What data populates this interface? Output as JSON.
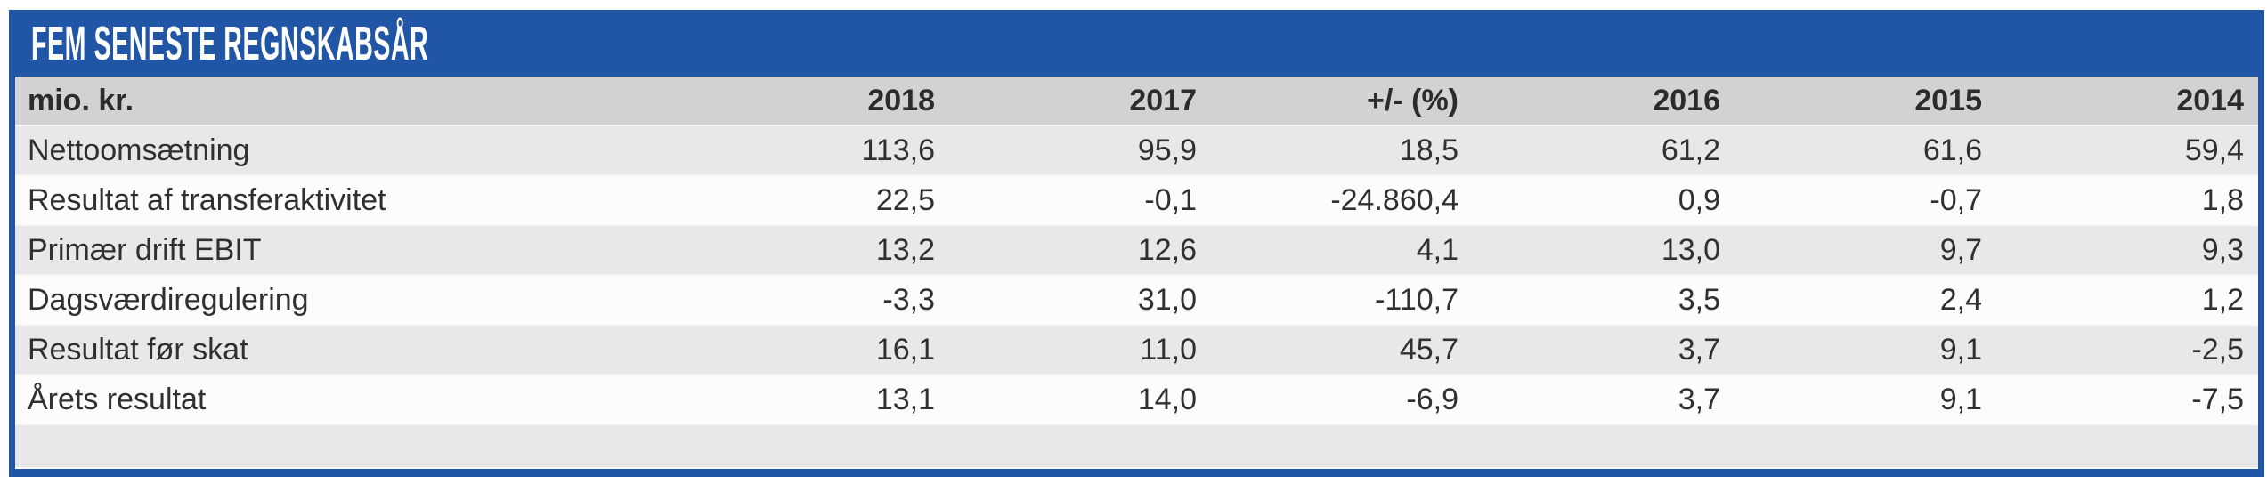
{
  "title": "FEM SENESTE REGNSKABSÅR",
  "colors": {
    "accent_blue": "#2056a5",
    "header_row_bg": "#d2d2d4",
    "row_alt_bg": "#e8e8ea",
    "row_bg": "#fcfcfc",
    "title_text": "#ffffff",
    "body_text": "#303030"
  },
  "table": {
    "unit_label": "mio. kr.",
    "columns": [
      "2018",
      "2017",
      "+/- (%)",
      "2016",
      "2015",
      "2014"
    ],
    "rows": [
      {
        "label": "Nettoomsætning",
        "values": [
          "113,6",
          "95,9",
          "18,5",
          "61,2",
          "61,6",
          "59,4"
        ]
      },
      {
        "label": "Resultat af transferaktivitet",
        "values": [
          "22,5",
          "-0,1",
          "-24.860,4",
          "0,9",
          "-0,7",
          "1,8"
        ]
      },
      {
        "label": "Primær drift EBIT",
        "values": [
          "13,2",
          "12,6",
          "4,1",
          "13,0",
          "9,7",
          "9,3"
        ]
      },
      {
        "label": "Dagsværdiregulering",
        "values": [
          "-3,3",
          "31,0",
          "-110,7",
          "3,5",
          "2,4",
          "1,2"
        ]
      },
      {
        "label": "Resultat før skat",
        "values": [
          "16,1",
          "11,0",
          "45,7",
          "3,7",
          "9,1",
          "-2,5"
        ]
      },
      {
        "label": "Årets resultat",
        "values": [
          "13,1",
          "14,0",
          "-6,9",
          "3,7",
          "9,1",
          "-7,5"
        ]
      }
    ]
  },
  "chart_data": {
    "type": "table",
    "title": "FEM SENESTE REGNSKABSÅR",
    "unit": "mio. kr.",
    "categories": [
      "2018",
      "2017",
      "+/- (%)",
      "2016",
      "2015",
      "2014"
    ],
    "series": [
      {
        "name": "Nettoomsætning",
        "values": [
          113.6,
          95.9,
          18.5,
          61.2,
          61.6,
          59.4
        ]
      },
      {
        "name": "Resultat af transferaktivitet",
        "values": [
          22.5,
          -0.1,
          -24860.4,
          0.9,
          -0.7,
          1.8
        ]
      },
      {
        "name": "Primær drift EBIT",
        "values": [
          13.2,
          12.6,
          4.1,
          13.0,
          9.7,
          9.3
        ]
      },
      {
        "name": "Dagsværdiregulering",
        "values": [
          -3.3,
          31.0,
          -110.7,
          3.5,
          2.4,
          1.2
        ]
      },
      {
        "name": "Resultat før skat",
        "values": [
          16.1,
          11.0,
          45.7,
          3.7,
          9.1,
          -2.5
        ]
      },
      {
        "name": "Årets resultat",
        "values": [
          13.1,
          14.0,
          -6.9,
          3.7,
          9.1,
          -7.5
        ]
      }
    ]
  }
}
